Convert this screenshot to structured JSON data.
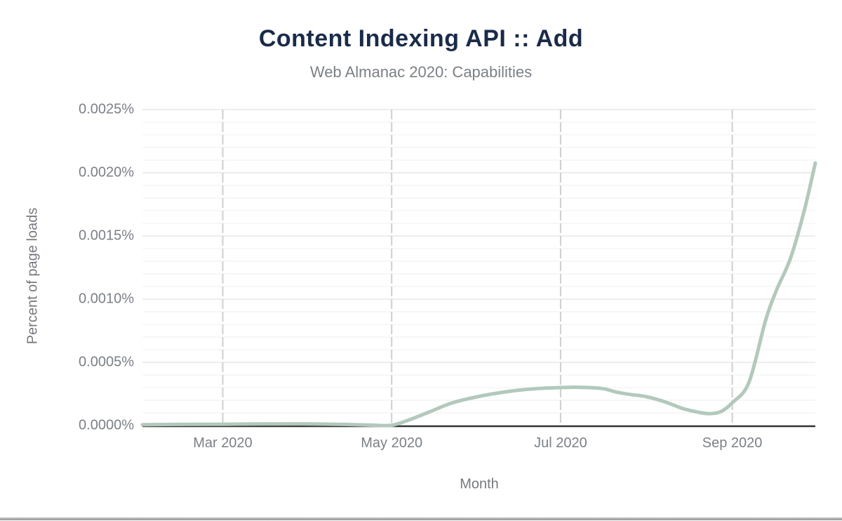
{
  "header": {
    "title": "Content Indexing API :: Add",
    "subtitle": "Web Almanac 2020: Capabilities"
  },
  "axes": {
    "x_title": "Month",
    "y_title": "Percent of page loads"
  },
  "colors": {
    "title": "#1a2b49",
    "subtitle": "#7b8087",
    "tick_label": "#7b8087",
    "axis_line": "#333333",
    "vertical_gridline": "#cfcfcf",
    "minor_gridline": "#f7f7f7",
    "major_gridline": "#ededed",
    "series_line": "#b2c9bb",
    "bottom_bar": "#a3a3a3"
  },
  "chart_data": {
    "type": "line",
    "title": "Content Indexing API :: Add",
    "subtitle": "Web Almanac 2020: Capabilities",
    "xlabel": "Month",
    "ylabel": "Percent of page loads",
    "legend_position": "none",
    "x_range_dates": [
      "2020-02-01",
      "2020-10-01"
    ],
    "x_range_days": [
      0,
      243
    ],
    "x_ticks": [
      {
        "label": "Mar 2020",
        "day": 29
      },
      {
        "label": "May 2020",
        "day": 90
      },
      {
        "label": "Jul 2020",
        "day": 151
      },
      {
        "label": "Sep 2020",
        "day": 213
      }
    ],
    "ylim": [
      0,
      0.0025
    ],
    "y_ticks": [
      {
        "label": "0.0000%",
        "value": 0.0
      },
      {
        "label": "0.0005%",
        "value": 0.0005
      },
      {
        "label": "0.0010%",
        "value": 0.001
      },
      {
        "label": "0.0015%",
        "value": 0.0015
      },
      {
        "label": "0.0020%",
        "value": 0.002
      },
      {
        "label": "0.0025%",
        "value": 0.0025
      }
    ],
    "y_minor_step": 0.0001,
    "y_major_step": 0.0005,
    "grid": {
      "horizontal_minor": true,
      "horizontal_major": true,
      "vertical_dashed_at_ticks": true
    },
    "series": [
      {
        "name": "Content Indexing API :: Add",
        "color": "#b2c9bb",
        "unit": "percent of page loads",
        "points_t_days_from_2020_02_01_v_percent": [
          [
            0,
            6e-06
          ],
          [
            14,
            9e-06
          ],
          [
            29,
            1e-05
          ],
          [
            44,
            1.2e-05
          ],
          [
            60,
            1.3e-05
          ],
          [
            75,
            8e-06
          ],
          [
            83,
            3e-06
          ],
          [
            90,
            2e-06
          ],
          [
            97,
            5e-05
          ],
          [
            105,
            0.00012
          ],
          [
            112,
            0.00018
          ],
          [
            121,
            0.000228
          ],
          [
            129,
            0.000259
          ],
          [
            136,
            0.00028
          ],
          [
            143,
            0.000293
          ],
          [
            151,
            0.0003
          ],
          [
            158,
            0.000302
          ],
          [
            166,
            0.000293
          ],
          [
            171,
            0.000265
          ],
          [
            176,
            0.000246
          ],
          [
            182,
            0.000228
          ],
          [
            189,
            0.000185
          ],
          [
            195,
            0.000135
          ],
          [
            201,
            0.000104
          ],
          [
            205,
            9.4e-05
          ],
          [
            209,
            0.000111
          ],
          [
            213,
            0.00018
          ],
          [
            219,
            0.00034
          ],
          [
            225,
            0.00083
          ],
          [
            229,
            0.001072
          ],
          [
            234,
            0.001322
          ],
          [
            239,
            0.0017
          ],
          [
            243,
            0.002078
          ]
        ]
      }
    ]
  }
}
